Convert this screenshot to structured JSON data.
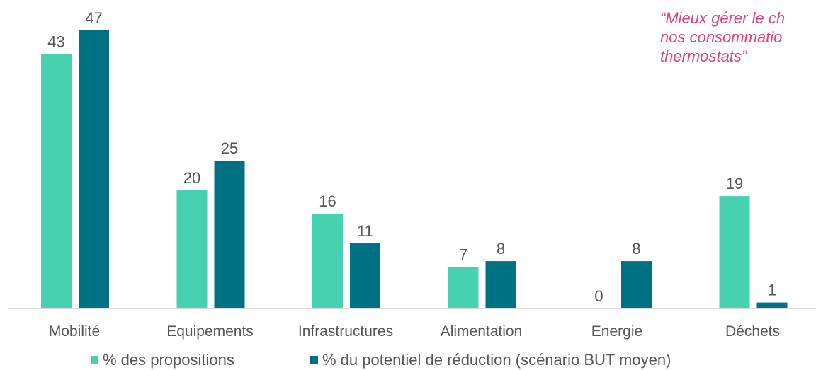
{
  "chart_data": {
    "type": "bar",
    "categories": [
      "Mobilité",
      "Equipements",
      "Infrastructures",
      "Alimentation",
      "Energie",
      "Déchets"
    ],
    "series": [
      {
        "name": "% des propositions",
        "values": [
          43,
          20,
          16,
          7,
          0,
          19
        ],
        "color": "#48d1b0"
      },
      {
        "name": "% du potentiel de réduction (scénario BUT moyen)",
        "values": [
          47,
          25,
          11,
          8,
          8,
          1
        ],
        "color": "#007182"
      }
    ],
    "title": "",
    "xlabel": "",
    "ylabel": "",
    "ylim": [
      0,
      47
    ],
    "grid": false,
    "legend_position": "bottom"
  },
  "quote": {
    "lines": [
      "“Mieux gérer le ch",
      "nos consommatio",
      "thermostats”"
    ],
    "color": "#e0407f"
  }
}
